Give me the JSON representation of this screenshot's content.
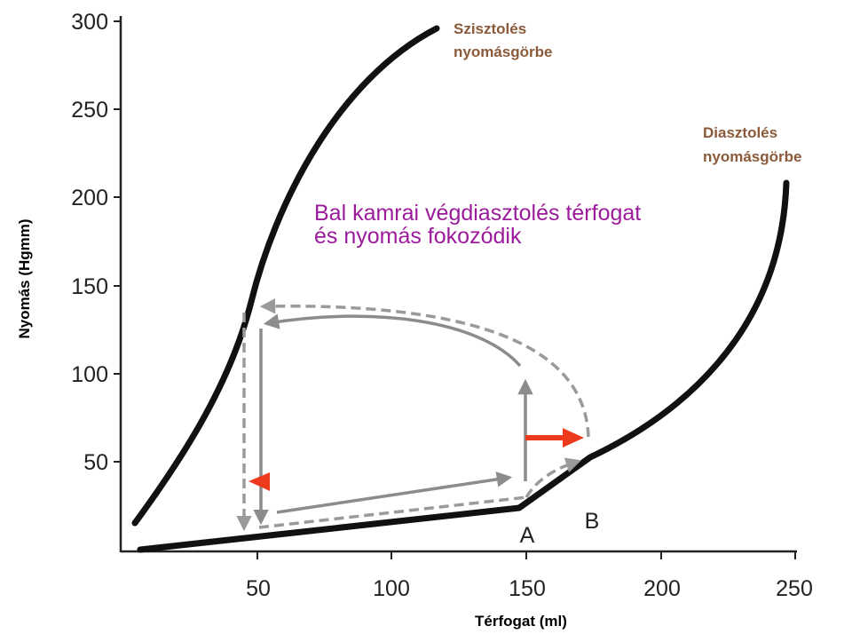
{
  "axes": {
    "x_title": "Térfogat (ml)",
    "y_title": "Nyomás (Hgmm)",
    "x_ticks": [
      "50",
      "100",
      "150",
      "200",
      "250"
    ],
    "y_ticks": [
      "300",
      "250",
      "200",
      "150",
      "100",
      "50"
    ]
  },
  "labels": {
    "systolic_line1": "Szisztolés",
    "systolic_line2": "nyomásgörbe",
    "diastolic_line1": "Diasztolés",
    "diastolic_line2": "nyomásgörbe",
    "annotation_line1": "Bal kamrai végdiasztolés térfogat",
    "annotation_line2": "és nyomás fokozódik",
    "point_a": "A",
    "point_b": "B"
  },
  "colors": {
    "curve": "#111111",
    "loop_solid": "#8c8c8c",
    "loop_dashed": "#9a9a9a",
    "highlight_arrow": "#ee3a1c",
    "systolic_label": "#8b5a3a",
    "annotation": "#9b1b9b"
  }
}
